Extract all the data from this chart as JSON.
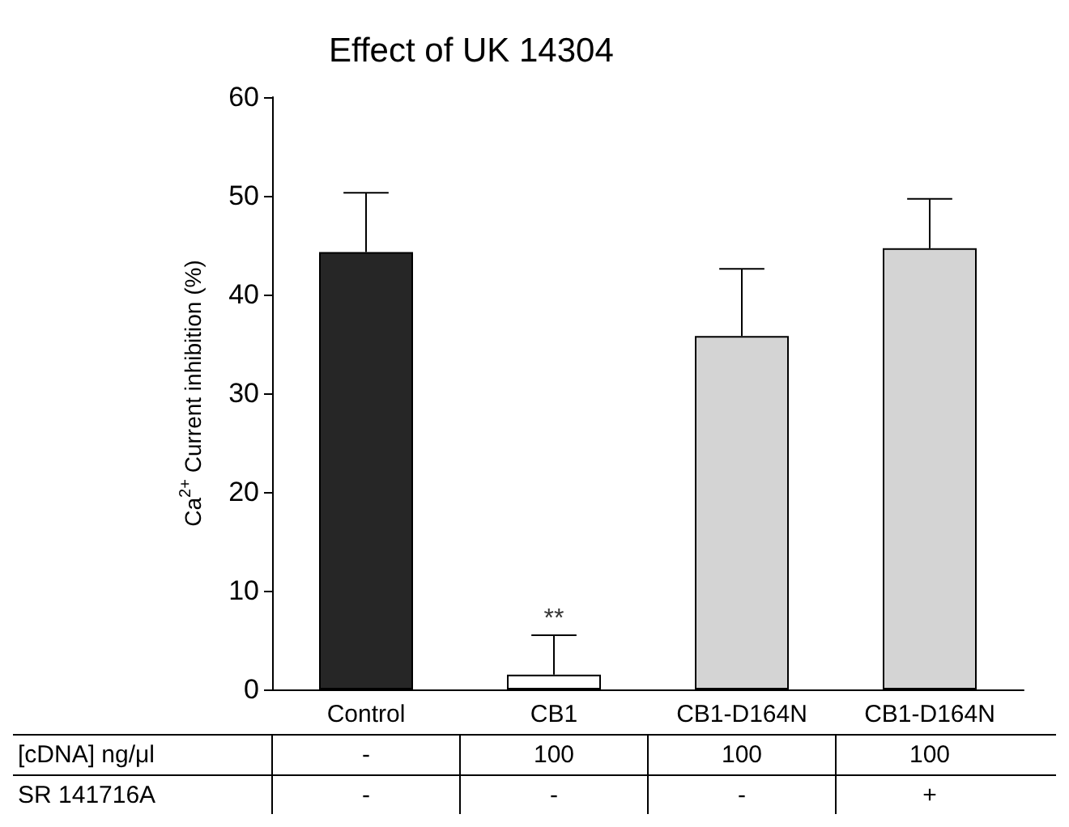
{
  "chart_data": {
    "type": "bar",
    "title": "Effect of UK 14304",
    "ylabel": "Ca$^{2+}$ Current inhibition (%)",
    "categories": [
      "Control",
      "CB1",
      "CB1-D164N",
      "CB1-D164N"
    ],
    "values": [
      44.3,
      1.5,
      35.8,
      44.7
    ],
    "colors": [
      "#262626",
      "#ffffff",
      "#d4d4d4",
      "#d4d4d4"
    ],
    "errors": [
      [
        44.3,
        50.3
      ],
      [
        1.5,
        5.5
      ],
      [
        35.8,
        42.6
      ],
      [
        44.7,
        49.7
      ]
    ],
    "ylim": [
      0,
      60
    ],
    "yticks": [
      0,
      10,
      20,
      30,
      40,
      50,
      60
    ],
    "annotations": [
      {
        "text": "**",
        "x": "CB1",
        "y": 5.5
      },
      "[cDNA] ng/μl",
      "-",
      "100",
      "100",
      "100",
      "SR 141716A",
      "-",
      "-",
      "-",
      "+"
    ]
  }
}
